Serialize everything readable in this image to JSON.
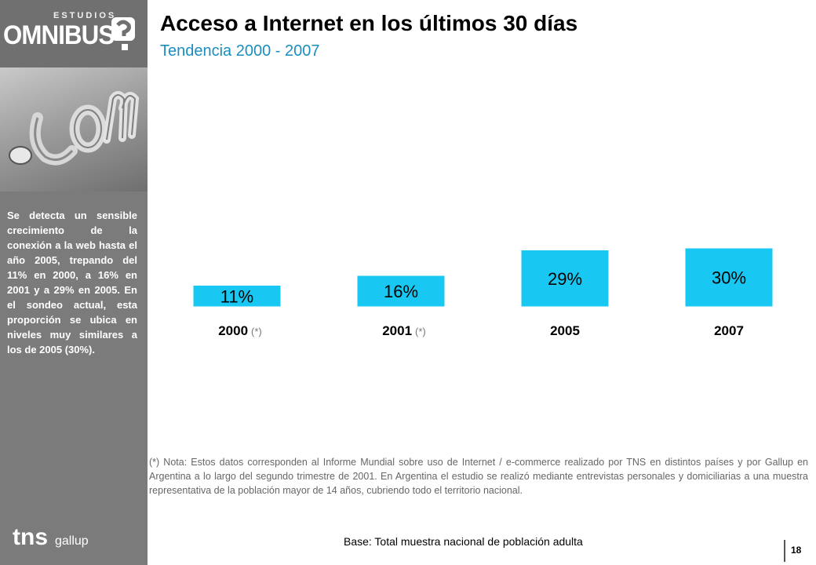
{
  "brand": {
    "estudios": "ESTUDIOS",
    "omnibus": "OMNIBUS",
    "tns": "tns",
    "gallup": "gallup"
  },
  "header": {
    "title": "Acceso a Internet en los últimos 30 días",
    "subtitle": "Tendencia 2000 - 2007"
  },
  "sidebar": {
    "text": "Se detecta un sensible crecimiento de la conexión a la web hasta el año 2005, trepando del 11% en 2000, a 16% en 2001 y a 29% en 2005. En el sondeo actual, esta proporción se ubica en niveles muy similares a los de 2005 (30%)."
  },
  "chart_data": {
    "type": "bar",
    "categories": [
      "2000",
      "2001",
      "2005",
      "2007"
    ],
    "category_notes": [
      "(*)",
      "(*)",
      "",
      ""
    ],
    "values": [
      11,
      16,
      29,
      30
    ],
    "value_labels": [
      "11%",
      "16%",
      "29%",
      "30%"
    ],
    "title": "",
    "xlabel": "",
    "ylabel": "",
    "ylim": [
      0,
      30
    ],
    "grid": false,
    "bar_color": "#19c8f2"
  },
  "footnote": "(*) Nota: Estos datos corresponden al Informe Mundial sobre uso de Internet / e-commerce realizado por TNS en distintos países y por Gallup en Argentina a lo largo del segundo trimestre de 2001. En Argentina el estudio se realizó mediante entrevistas personales y domiciliarias a una muestra representativa de la población mayor de 14 años, cubriendo todo el territorio nacional.",
  "base": "Base: Total muestra nacional de población adulta",
  "page_number": "18",
  "colors": {
    "accent": "#1a8fbf",
    "sidebar": "#7b7b7b"
  }
}
